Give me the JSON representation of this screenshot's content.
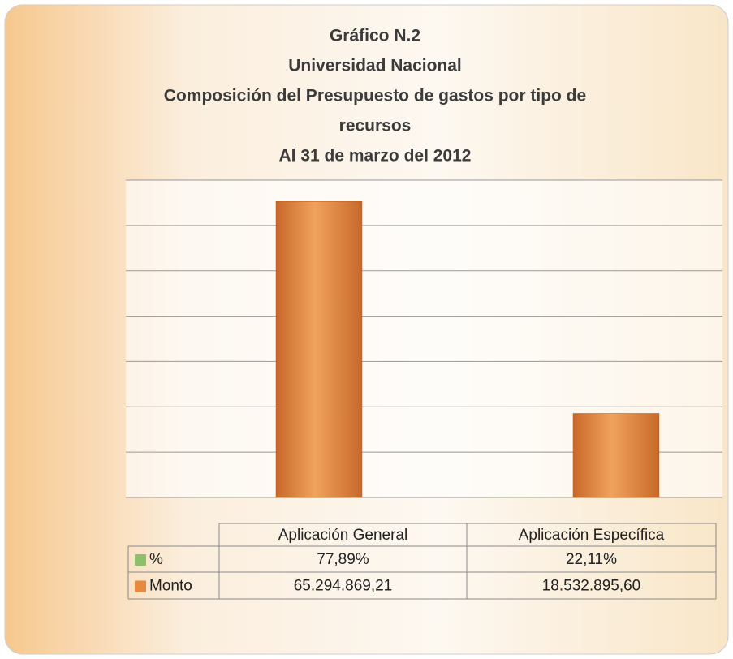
{
  "chart_data": {
    "type": "bar",
    "title": [
      "Gráfico N.2",
      "Universidad Nacional",
      "Composición del Presupuesto de gastos por tipo de",
      "recursos",
      "Al  31 de marzo del 2012"
    ],
    "categories": [
      "Aplicación General",
      "Aplicación Específica"
    ],
    "series": [
      {
        "name": "%",
        "color": "#8cc06a",
        "values": [
          77.89,
          22.11
        ],
        "value_labels": [
          "77,89%",
          "22,11%"
        ]
      },
      {
        "name": "Monto",
        "color": "#e58a3e",
        "values": [
          65294869.21,
          18532895.6
        ],
        "value_labels": [
          "65.294.869,21",
          "18.532.895,60"
        ]
      }
    ],
    "ylim": [
      0,
      70000000
    ],
    "yticks": [
      0,
      10000000,
      20000000,
      30000000,
      40000000,
      50000000,
      60000000,
      70000000
    ],
    "grid": true
  }
}
